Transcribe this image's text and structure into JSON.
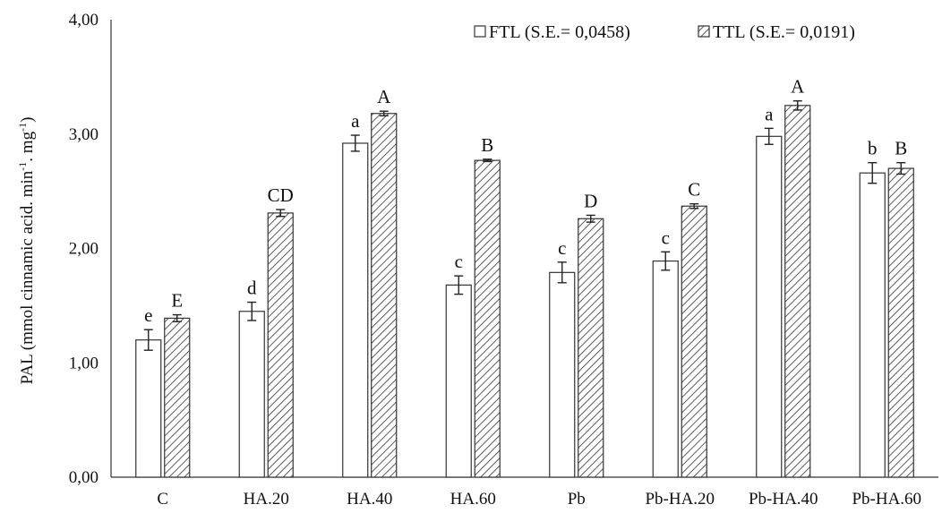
{
  "chart_data": {
    "type": "bar",
    "ylabel": "PAL (mmol cinnamic acid. min",
    "ylabel_sup1": "-1",
    "ylabel_mid": ". mg",
    "ylabel_sup2": "-1",
    "ylabel_end": ")",
    "ylim": [
      0,
      4
    ],
    "yticks": [
      "0,00",
      "1,00",
      "2,00",
      "3,00",
      "4,00"
    ],
    "ytick_values": [
      0,
      1,
      2,
      3,
      4
    ],
    "grid": false,
    "legend_position": "top-right",
    "categories": [
      "C",
      "HA.20",
      "HA.40",
      "HA.60",
      "Pb",
      "Pb-HA.20",
      "Pb-HA.40",
      "Pb-HA.60"
    ],
    "series": [
      {
        "name": "FTL (S.E.= 0,0458)",
        "pattern": "white",
        "values": [
          1.2,
          1.45,
          2.92,
          1.68,
          1.79,
          1.89,
          2.98,
          2.66
        ],
        "errors": [
          0.09,
          0.08,
          0.07,
          0.08,
          0.09,
          0.08,
          0.07,
          0.09
        ],
        "letters": [
          "e",
          "d",
          "a",
          "c",
          "c",
          "c",
          "a",
          "b"
        ]
      },
      {
        "name": "TTL (S.E.= 0,0191)",
        "pattern": "hatched",
        "values": [
          1.39,
          2.31,
          3.18,
          2.77,
          2.26,
          2.37,
          3.25,
          2.7
        ],
        "errors": [
          0.03,
          0.03,
          0.02,
          0.01,
          0.03,
          0.02,
          0.04,
          0.05
        ],
        "letters": [
          "E",
          "CD",
          "A",
          "B",
          "D",
          "C",
          "A",
          "B"
        ]
      }
    ]
  }
}
